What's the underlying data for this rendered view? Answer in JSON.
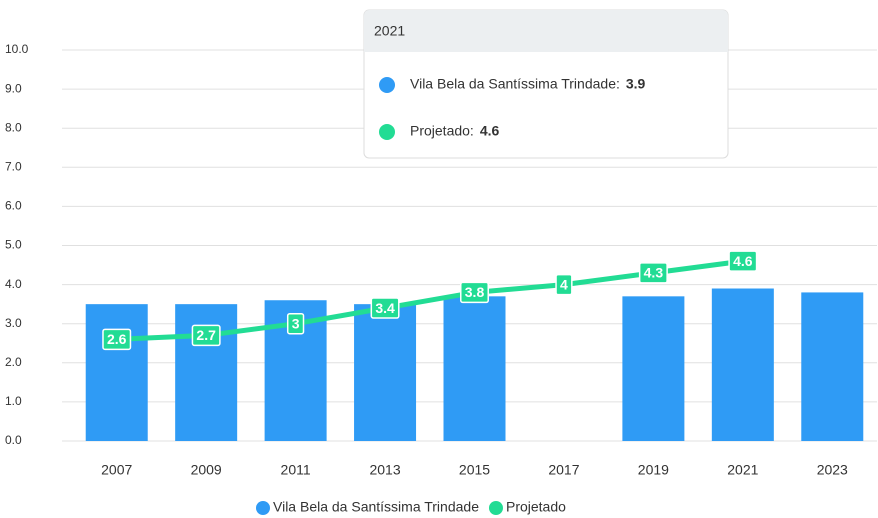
{
  "chart_data": {
    "type": "bar-line",
    "categories": [
      "2007",
      "2009",
      "2011",
      "2013",
      "2015",
      "2017",
      "2019",
      "2021",
      "2023"
    ],
    "series": [
      {
        "name": "Vila Bela da Santíssima Trindade",
        "type": "bar",
        "color": "#2f9bf5",
        "values": [
          3.5,
          3.5,
          3.6,
          3.5,
          3.7,
          null,
          3.7,
          3.9,
          3.8
        ]
      },
      {
        "name": "Projetado",
        "type": "line",
        "color": "#22dc94",
        "values": [
          2.6,
          2.7,
          3,
          3.4,
          3.8,
          4,
          4.3,
          4.6,
          null
        ]
      }
    ],
    "ylim": [
      0,
      10
    ],
    "yticks": [
      {
        "value": 0,
        "label": "0.0"
      },
      {
        "value": 1,
        "label": "1.0"
      },
      {
        "value": 2,
        "label": "2.0"
      },
      {
        "value": 3,
        "label": "3.0"
      },
      {
        "value": 4,
        "label": "4.0"
      },
      {
        "value": 5,
        "label": "5.0"
      },
      {
        "value": 6,
        "label": "6.0"
      },
      {
        "value": 7,
        "label": "7.0"
      },
      {
        "value": 8,
        "label": "8.0"
      },
      {
        "value": 9,
        "label": "9.0"
      },
      {
        "value": 10,
        "label": "10.0"
      }
    ],
    "grid": true,
    "legend": "bottom",
    "tooltip": {
      "title": "2021",
      "items": [
        {
          "label": "Vila Bela da Santíssima Trindade:",
          "value": 3.9
        },
        {
          "label": "Projetado:",
          "value": 4.6
        }
      ]
    }
  }
}
